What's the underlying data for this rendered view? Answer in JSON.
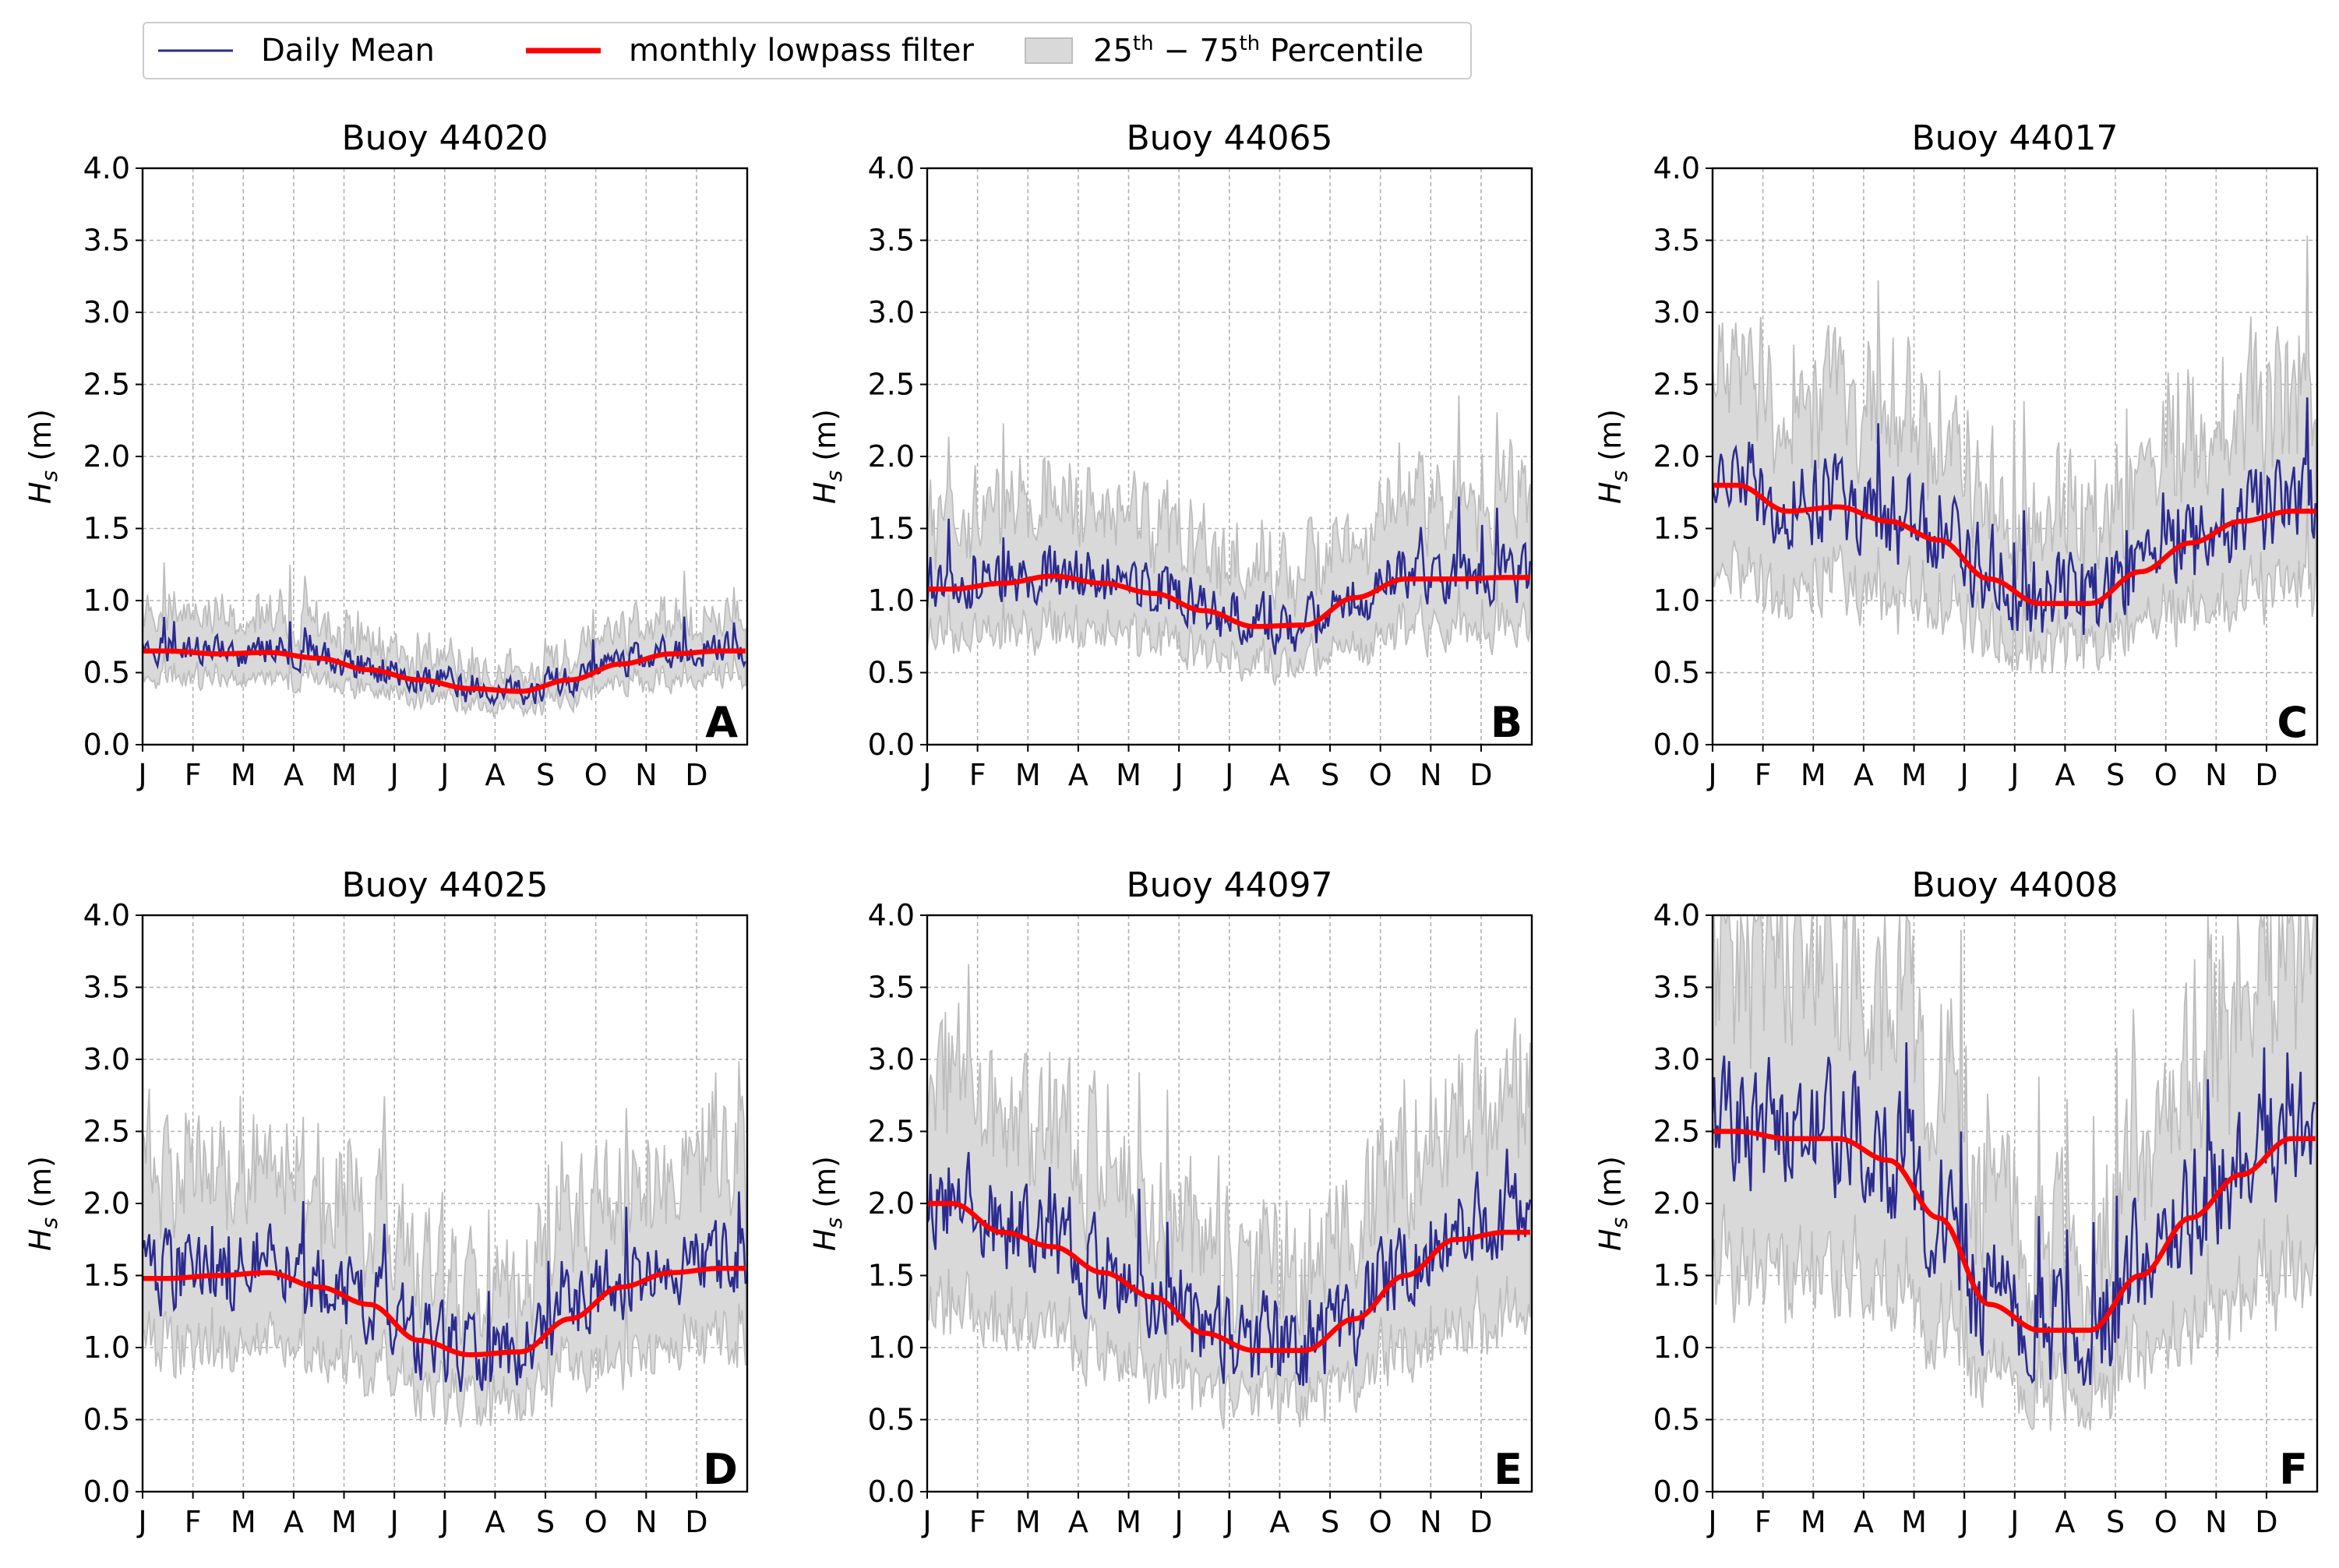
{
  "legend": {
    "daily_mean": "Daily Mean",
    "lowpass": "monthly lowpass filter",
    "percentile_base": "25",
    "percentile_sup1": "th",
    "percentile_mid": " − 75",
    "percentile_sup2": "th",
    "percentile_tail": " Percentile"
  },
  "colors": {
    "daily_mean": "#2b2b8f",
    "lowpass": "#ff0000",
    "percentile_fill": "#d9d9d9",
    "percentile_edge": "#bdbdbd",
    "grid": "#b0b0b0"
  },
  "chart_data": [
    {
      "type": "line",
      "title": "Buoy 44020",
      "ylabel": "H_s (m)",
      "panel_label": "A",
      "ylim": [
        0,
        4.0
      ],
      "yticks": [
        "0.0",
        "0.5",
        "1.0",
        "1.5",
        "2.0",
        "2.5",
        "3.0",
        "3.5",
        "4.0"
      ],
      "xticks": [
        "J",
        "F",
        "M",
        "A",
        "M",
        "J",
        "J",
        "A",
        "S",
        "O",
        "N",
        "D"
      ],
      "grid": true,
      "lowpass": [
        0.65,
        0.63,
        0.64,
        0.6,
        0.52,
        0.45,
        0.39,
        0.37,
        0.45,
        0.56,
        0.63,
        0.65
      ],
      "daily_noise": 0.1,
      "band_low": 0.72,
      "band_high": 1.3
    },
    {
      "type": "line",
      "title": "Buoy 44065",
      "ylabel": "H_s (m)",
      "panel_label": "B",
      "ylim": [
        0,
        4.0
      ],
      "yticks": [
        "0.0",
        "0.5",
        "1.0",
        "1.5",
        "2.0",
        "2.5",
        "3.0",
        "3.5",
        "4.0"
      ],
      "xticks": [
        "J",
        "F",
        "M",
        "A",
        "M",
        "J",
        "J",
        "A",
        "S",
        "O",
        "N",
        "D"
      ],
      "grid": true,
      "lowpass": [
        1.08,
        1.12,
        1.17,
        1.12,
        1.05,
        0.93,
        0.82,
        0.83,
        1.02,
        1.15,
        1.15,
        1.16
      ],
      "daily_noise": 0.18,
      "band_low": 0.68,
      "band_high": 1.38
    },
    {
      "type": "line",
      "title": "Buoy 44017",
      "ylabel": "H_s (m)",
      "panel_label": "C",
      "ylim": [
        0,
        4.0
      ],
      "yticks": [
        "0.0",
        "0.5",
        "1.0",
        "1.5",
        "2.0",
        "2.5",
        "3.0",
        "3.5",
        "4.0"
      ],
      "xticks": [
        "J",
        "F",
        "M",
        "A",
        "M",
        "J",
        "J",
        "A",
        "S",
        "O",
        "N",
        "D"
      ],
      "grid": true,
      "lowpass": [
        1.8,
        1.62,
        1.65,
        1.55,
        1.42,
        1.15,
        0.98,
        0.98,
        1.2,
        1.4,
        1.55,
        1.62
      ],
      "daily_noise": 0.28,
      "band_low": 0.65,
      "band_high": 1.4
    },
    {
      "type": "line",
      "title": "Buoy 44025",
      "ylabel": "H_s (m)",
      "panel_label": "D",
      "ylim": [
        0,
        4.0
      ],
      "yticks": [
        "0.0",
        "0.5",
        "1.0",
        "1.5",
        "2.0",
        "2.5",
        "3.0",
        "3.5",
        "4.0"
      ],
      "xticks": [
        "J",
        "F",
        "M",
        "A",
        "M",
        "J",
        "J",
        "A",
        "S",
        "O",
        "N",
        "D"
      ],
      "grid": true,
      "lowpass": [
        1.48,
        1.5,
        1.52,
        1.42,
        1.3,
        1.05,
        0.95,
        0.97,
        1.2,
        1.42,
        1.52,
        1.55
      ],
      "daily_noise": 0.25,
      "band_low": 0.65,
      "band_high": 1.38
    },
    {
      "type": "line",
      "title": "Buoy 44097",
      "ylabel": "H_s (m)",
      "panel_label": "E",
      "ylim": [
        0,
        4.0
      ],
      "yticks": [
        "0.0",
        "0.5",
        "1.0",
        "1.5",
        "2.0",
        "2.5",
        "3.0",
        "3.5",
        "4.0"
      ],
      "xticks": [
        "J",
        "F",
        "M",
        "A",
        "M",
        "J",
        "J",
        "A",
        "S",
        "O",
        "N",
        "D"
      ],
      "grid": true,
      "lowpass": [
        2.0,
        1.8,
        1.7,
        1.52,
        1.35,
        1.1,
        0.98,
        0.98,
        1.2,
        1.5,
        1.75,
        1.8
      ],
      "daily_noise": 0.3,
      "band_low": 0.63,
      "band_high": 1.4
    },
    {
      "type": "line",
      "title": "Buoy 44008",
      "ylabel": "H_s (m)",
      "panel_label": "F",
      "ylim": [
        0,
        4.0
      ],
      "yticks": [
        "0.0",
        "0.5",
        "1.0",
        "1.5",
        "2.0",
        "2.5",
        "3.0",
        "3.5",
        "4.0"
      ],
      "xticks": [
        "J",
        "F",
        "M",
        "A",
        "M",
        "J",
        "J",
        "A",
        "S",
        "O",
        "N",
        "D"
      ],
      "grid": true,
      "lowpass": [
        2.5,
        2.45,
        2.45,
        2.3,
        1.9,
        1.3,
        1.12,
        1.12,
        1.5,
        1.9,
        2.2,
        2.45
      ],
      "daily_noise": 0.4,
      "band_low": 0.6,
      "band_high": 1.45
    }
  ]
}
